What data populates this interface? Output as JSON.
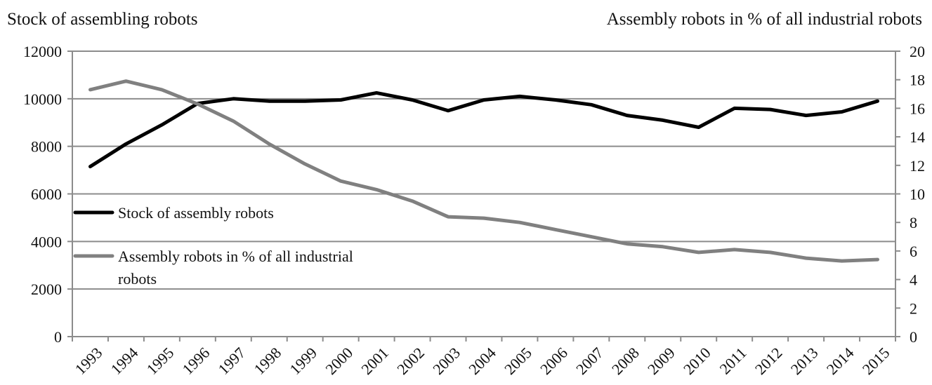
{
  "chart_data": {
    "type": "line",
    "title": "",
    "y_left_label": "Stock of assembling robots",
    "y_right_label": "Assembly robots in % of all industrial robots",
    "categories": [
      "1993",
      "1994",
      "1995",
      "1996",
      "1997",
      "1998",
      "1999",
      "2000",
      "2001",
      "2002",
      "2003",
      "2004",
      "2005",
      "2006",
      "2007",
      "2008",
      "2009",
      "2010",
      "2011",
      "2012",
      "2013",
      "2014",
      "2015"
    ],
    "y_left_ticks": [
      "0",
      "2000",
      "4000",
      "6000",
      "8000",
      "10000",
      "12000"
    ],
    "y_right_ticks": [
      "0",
      "2",
      "4",
      "6",
      "8",
      "10",
      "12",
      "14",
      "16",
      "18",
      "20"
    ],
    "ylim_left": [
      0,
      12000
    ],
    "ylim_right": [
      0,
      20
    ],
    "grid": true,
    "legend_position": "left-middle",
    "series": [
      {
        "name": "Stock of assembly robots",
        "axis": "left",
        "color": "#000000",
        "values": [
          7150,
          8100,
          8900,
          9800,
          10000,
          9900,
          9900,
          9950,
          10250,
          9950,
          9500,
          9950,
          10100,
          9950,
          9750,
          9300,
          9100,
          8800,
          9600,
          9550,
          9300,
          9450,
          9900
        ]
      },
      {
        "name": "Assembly robots in % of all industrial robots",
        "name_lines": [
          "Assembly robots in % of all industrial",
          "robots"
        ],
        "axis": "right",
        "color": "#808080",
        "values": [
          17.3,
          17.9,
          17.3,
          16.3,
          15.1,
          13.5,
          12.1,
          10.9,
          10.3,
          9.5,
          8.4,
          8.3,
          8.0,
          7.5,
          7.0,
          6.5,
          6.3,
          5.9,
          6.1,
          5.9,
          5.5,
          5.3,
          5.4
        ]
      }
    ]
  }
}
